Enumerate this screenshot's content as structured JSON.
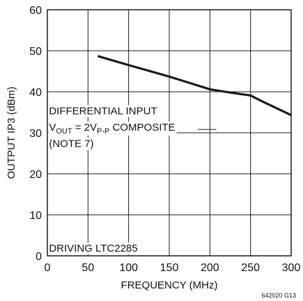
{
  "chart_data": {
    "type": "line",
    "title": "",
    "xlabel": "FREQUENCY (MHz)",
    "ylabel": "OUTPUT IP3 (dBm)",
    "xlim": [
      0,
      300
    ],
    "ylim": [
      0,
      60
    ],
    "x_ticks": [
      0,
      50,
      100,
      150,
      200,
      250,
      300
    ],
    "y_ticks": [
      0,
      10,
      20,
      30,
      40,
      50,
      60
    ],
    "grid": true,
    "legend": "none",
    "series": [
      {
        "x": [
          62,
          100,
          150,
          200,
          225,
          250,
          265,
          300
        ],
        "y": [
          48.7,
          46.5,
          43.7,
          40.6,
          39.8,
          39.1,
          37.6,
          34.3
        ],
        "color": "#1a1a1a"
      }
    ],
    "annotations": [
      {
        "text": "DIFFERENTIAL INPUT",
        "x": 2,
        "y": 34.5
      },
      {
        "text": "COMPOSITE",
        "x": 2,
        "y": 30.5,
        "prefix_main": "V",
        "prefix_sub": "OUT",
        "equals": " = 2V",
        "equals_sub": "P-P"
      },
      {
        "text": "(NOTE 7)",
        "x": 2,
        "y": 26.5
      },
      {
        "text": "DRIVING LTC2285",
        "x": 2,
        "y": 1.0
      }
    ],
    "annotation_leader": {
      "from_x": 185,
      "to_x": 208,
      "y": 30.8
    },
    "figure_id": "642020 G13"
  }
}
